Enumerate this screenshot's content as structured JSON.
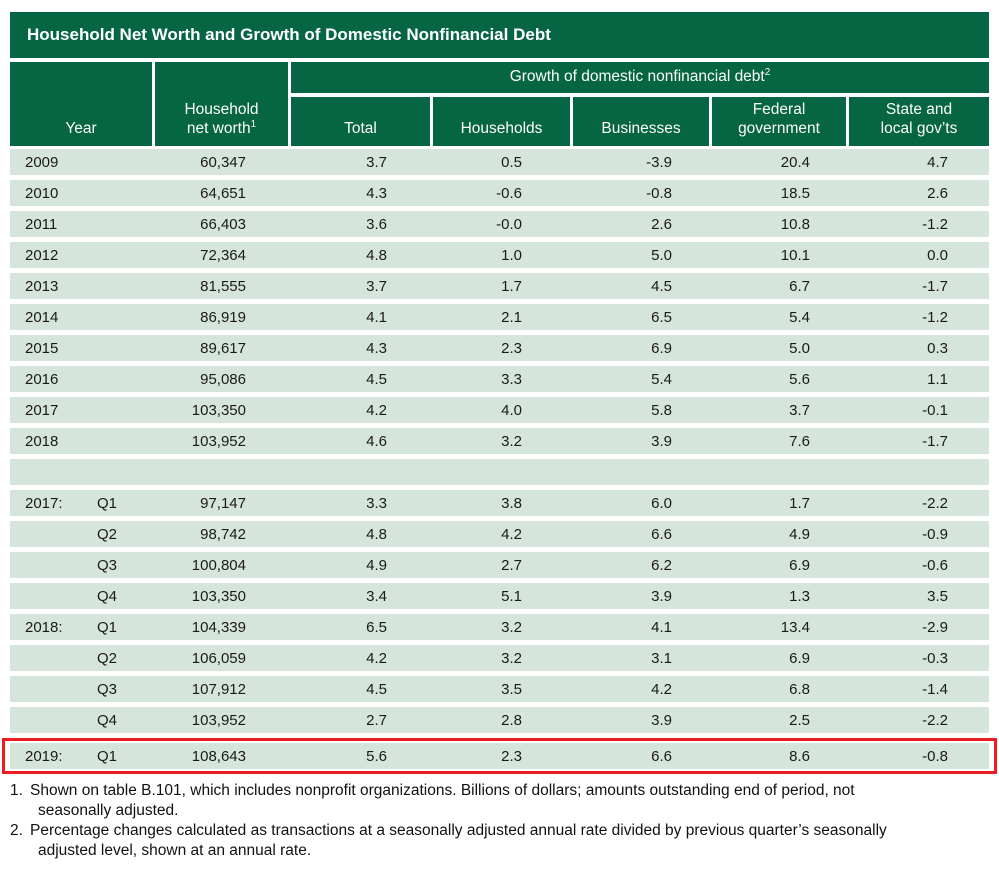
{
  "title": "Household Net Worth and Growth of Domestic Nonfinancial Debt",
  "header": {
    "year": "Year",
    "net_worth_label": "Household net worth",
    "net_worth_sup": "1",
    "growth_label": "Growth of domestic nonfinancial debt",
    "growth_sup": "2",
    "sub_columns": [
      "Total",
      "Households",
      "Businesses",
      "Federal government",
      "State and local gov’ts"
    ]
  },
  "table": {
    "rows": [
      {
        "year": "2009",
        "quarter": "",
        "net_worth": "60,347",
        "total": "3.7",
        "households": "0.5",
        "businesses": "-3.9",
        "federal": "20.4",
        "state_local": "4.7"
      },
      {
        "year": "2010",
        "quarter": "",
        "net_worth": "64,651",
        "total": "4.3",
        "households": "-0.6",
        "businesses": "-0.8",
        "federal": "18.5",
        "state_local": "2.6"
      },
      {
        "year": "2011",
        "quarter": "",
        "net_worth": "66,403",
        "total": "3.6",
        "households": "-0.0",
        "businesses": "2.6",
        "federal": "10.8",
        "state_local": "-1.2"
      },
      {
        "year": "2012",
        "quarter": "",
        "net_worth": "72,364",
        "total": "4.8",
        "households": "1.0",
        "businesses": "5.0",
        "federal": "10.1",
        "state_local": "0.0"
      },
      {
        "year": "2013",
        "quarter": "",
        "net_worth": "81,555",
        "total": "3.7",
        "households": "1.7",
        "businesses": "4.5",
        "federal": "6.7",
        "state_local": "-1.7"
      },
      {
        "year": "2014",
        "quarter": "",
        "net_worth": "86,919",
        "total": "4.1",
        "households": "2.1",
        "businesses": "6.5",
        "federal": "5.4",
        "state_local": "-1.2"
      },
      {
        "year": "2015",
        "quarter": "",
        "net_worth": "89,617",
        "total": "4.3",
        "households": "2.3",
        "businesses": "6.9",
        "federal": "5.0",
        "state_local": "0.3"
      },
      {
        "year": "2016",
        "quarter": "",
        "net_worth": "95,086",
        "total": "4.5",
        "households": "3.3",
        "businesses": "5.4",
        "federal": "5.6",
        "state_local": "1.1"
      },
      {
        "year": "2017",
        "quarter": "",
        "net_worth": "103,350",
        "total": "4.2",
        "households": "4.0",
        "businesses": "5.8",
        "federal": "3.7",
        "state_local": "-0.1"
      },
      {
        "year": "2018",
        "quarter": "",
        "net_worth": "103,952",
        "total": "4.6",
        "households": "3.2",
        "businesses": "3.9",
        "federal": "7.6",
        "state_local": "-1.7"
      },
      {
        "blank": true
      },
      {
        "year": "2017:",
        "quarter": "Q1",
        "net_worth": "97,147",
        "total": "3.3",
        "households": "3.8",
        "businesses": "6.0",
        "federal": "1.7",
        "state_local": "-2.2"
      },
      {
        "year": "",
        "quarter": "Q2",
        "net_worth": "98,742",
        "total": "4.8",
        "households": "4.2",
        "businesses": "6.6",
        "federal": "4.9",
        "state_local": "-0.9"
      },
      {
        "year": "",
        "quarter": "Q3",
        "net_worth": "100,804",
        "total": "4.9",
        "households": "2.7",
        "businesses": "6.2",
        "federal": "6.9",
        "state_local": "-0.6"
      },
      {
        "year": "",
        "quarter": "Q4",
        "net_worth": "103,350",
        "total": "3.4",
        "households": "5.1",
        "businesses": "3.9",
        "federal": "1.3",
        "state_local": "3.5"
      },
      {
        "year": "2018:",
        "quarter": "Q1",
        "net_worth": "104,339",
        "total": "6.5",
        "households": "3.2",
        "businesses": "4.1",
        "federal": "13.4",
        "state_local": "-2.9"
      },
      {
        "year": "",
        "quarter": "Q2",
        "net_worth": "106,059",
        "total": "4.2",
        "households": "3.2",
        "businesses": "3.1",
        "federal": "6.9",
        "state_local": "-0.3"
      },
      {
        "year": "",
        "quarter": "Q3",
        "net_worth": "107,912",
        "total": "4.5",
        "households": "3.5",
        "businesses": "4.2",
        "federal": "6.8",
        "state_local": "-1.4"
      },
      {
        "year": "",
        "quarter": "Q4",
        "net_worth": "103,952",
        "total": "2.7",
        "households": "2.8",
        "businesses": "3.9",
        "federal": "2.5",
        "state_local": "-2.2"
      },
      {
        "year": "2019:",
        "quarter": "Q1",
        "net_worth": "108,643",
        "total": "5.6",
        "households": "2.3",
        "businesses": "6.6",
        "federal": "8.6",
        "state_local": "-0.8",
        "highlighted": true
      }
    ]
  },
  "footnotes": [
    {
      "num": "1.",
      "lines": [
        "Shown on table B.101, which includes nonprofit organizations. Billions of dollars; amounts outstanding end of period, not",
        "seasonally adjusted."
      ]
    },
    {
      "num": "2.",
      "lines": [
        "Percentage changes calculated as transactions at a seasonally adjusted annual rate divided by previous quarter’s seasonally",
        "adjusted level, shown at an annual rate."
      ]
    }
  ],
  "colors": {
    "header_green": "#066543",
    "row_green": "#d6e5db",
    "highlight_red": "#ed1c24"
  }
}
